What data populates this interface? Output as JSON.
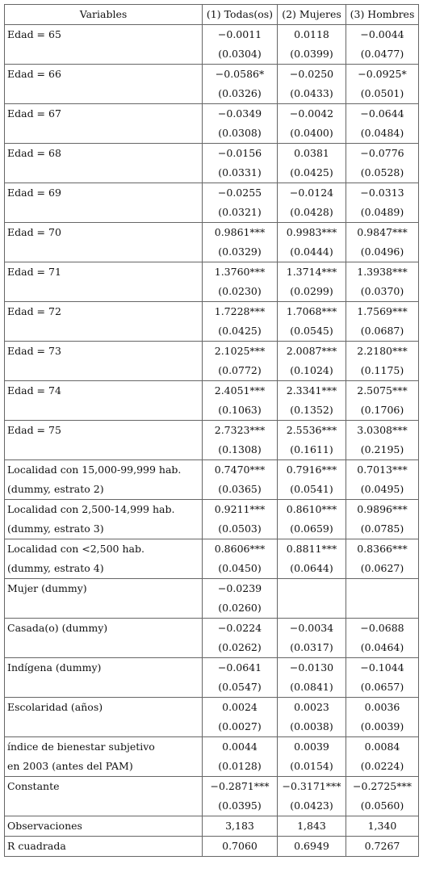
{
  "table": {
    "header": [
      "Variables",
      "(1) Todas(os)",
      "(2) Mujeres",
      "(3) Hombres"
    ],
    "groups": [
      {
        "rows": [
          {
            "label": "Edad = 65",
            "values": [
              "−0.0011",
              "0.0118",
              "−0.0044"
            ]
          },
          {
            "values": [
              "(0.0304)",
              "(0.0399)",
              "(0.0477)"
            ]
          }
        ]
      },
      {
        "rows": [
          {
            "label": "Edad = 66",
            "values": [
              "−0.0586*",
              "−0.0250",
              "−0.0925*"
            ]
          },
          {
            "values": [
              "(0.0326)",
              "(0.0433)",
              "(0.0501)"
            ]
          }
        ]
      },
      {
        "rows": [
          {
            "label": "Edad = 67",
            "values": [
              "−0.0349",
              "−0.0042",
              "−0.0644"
            ]
          },
          {
            "values": [
              "(0.0308)",
              "(0.0400)",
              "(0.0484)"
            ]
          }
        ]
      },
      {
        "rows": [
          {
            "label": "Edad = 68",
            "values": [
              "−0.0156",
              "0.0381",
              "−0.0776"
            ]
          },
          {
            "values": [
              "(0.0331)",
              "(0.0425)",
              "(0.0528)"
            ]
          }
        ]
      },
      {
        "rows": [
          {
            "label": "Edad = 69",
            "values": [
              "−0.0255",
              "−0.0124",
              "−0.0313"
            ]
          },
          {
            "values": [
              "(0.0321)",
              "(0.0428)",
              "(0.0489)"
            ]
          }
        ]
      },
      {
        "rows": [
          {
            "label": "Edad = 70",
            "values": [
              "0.9861***",
              "0.9983***",
              "0.9847***"
            ]
          },
          {
            "values": [
              "(0.0329)",
              "(0.0444)",
              "(0.0496)"
            ]
          }
        ]
      },
      {
        "rows": [
          {
            "label": "Edad = 71",
            "values": [
              "1.3760***",
              "1.3714***",
              "1.3938***"
            ]
          },
          {
            "values": [
              "(0.0230)",
              "(0.0299)",
              "(0.0370)"
            ]
          }
        ]
      },
      {
        "rows": [
          {
            "label": "Edad = 72",
            "values": [
              "1.7228***",
              "1.7068***",
              "1.7569***"
            ]
          },
          {
            "values": [
              "(0.0425)",
              "(0.0545)",
              "(0.0687)"
            ]
          }
        ]
      },
      {
        "rows": [
          {
            "label": "Edad = 73",
            "values": [
              "2.1025***",
              "2.0087***",
              "2.2180***"
            ]
          },
          {
            "values": [
              "(0.0772)",
              "(0.1024)",
              "(0.1175)"
            ]
          }
        ]
      },
      {
        "rows": [
          {
            "label": "Edad = 74",
            "values": [
              "2.4051***",
              "2.3341***",
              "2.5075***"
            ]
          },
          {
            "values": [
              "(0.1063)",
              "(0.1352)",
              "(0.1706)"
            ]
          }
        ]
      },
      {
        "rows": [
          {
            "label": "Edad = 75",
            "values": [
              "2.7323***",
              "2.5536***",
              "3.0308***"
            ]
          },
          {
            "values": [
              "(0.1308)",
              "(0.1611)",
              "(0.2195)"
            ]
          }
        ]
      },
      {
        "rows": [
          {
            "label": "Localidad con 15,000-99,999 hab.",
            "values": [
              "0.7470***",
              "0.7916***",
              "0.7013***"
            ]
          },
          {
            "label": "(dummy, estrato 2)",
            "values": [
              "(0.0365)",
              "(0.0541)",
              "(0.0495)"
            ]
          }
        ]
      },
      {
        "rows": [
          {
            "label": "Localidad con 2,500-14,999 hab.",
            "values": [
              "0.9211***",
              "0.8610***",
              "0.9896***"
            ]
          },
          {
            "label": "(dummy, estrato 3)",
            "values": [
              "(0.0503)",
              "(0.0659)",
              "(0.0785)"
            ]
          }
        ]
      },
      {
        "rows": [
          {
            "label": "Localidad con <2,500 hab.",
            "values": [
              "0.8606***",
              "0.8811***",
              "0.8366***"
            ]
          },
          {
            "label": "(dummy, estrato 4)",
            "values": [
              "(0.0450)",
              "(0.0644)",
              "(0.0627)"
            ]
          }
        ]
      },
      {
        "rows": [
          {
            "label": "Mujer (dummy)",
            "values": [
              "−0.0239",
              null,
              null
            ]
          },
          {
            "values": [
              "(0.0260)",
              null,
              null
            ]
          }
        ]
      },
      {
        "rows": [
          {
            "label": "Casada(o) (dummy)",
            "values": [
              "−0.0224",
              "−0.0034",
              "−0.0688"
            ]
          },
          {
            "values": [
              "(0.0262)",
              "(0.0317)",
              "(0.0464)"
            ]
          }
        ]
      },
      {
        "rows": [
          {
            "label": "Indígena (dummy)",
            "values": [
              "−0.0641",
              "−0.0130",
              "−0.1044"
            ]
          },
          {
            "values": [
              "(0.0547)",
              "(0.0841)",
              "(0.0657)"
            ]
          }
        ]
      },
      {
        "rows": [
          {
            "label": "Escolaridad (años)",
            "values": [
              "0.0024",
              "0.0023",
              "0.0036"
            ]
          },
          {
            "values": [
              "(0.0027)",
              "(0.0038)",
              "(0.0039)"
            ]
          }
        ]
      },
      {
        "rows": [
          {
            "label": "índice de bienestar subjetivo",
            "values": [
              "0.0044",
              "0.0039",
              "0.0084"
            ]
          },
          {
            "label": "en 2003 (antes del PAM)",
            "values": [
              "(0.0128)",
              "(0.0154)",
              "(0.0224)"
            ]
          }
        ]
      },
      {
        "rows": [
          {
            "label": "Constante",
            "values": [
              "−0.2871***",
              "−0.3171***",
              "−0.2725***"
            ]
          },
          {
            "values": [
              "(0.0395)",
              "(0.0423)",
              "(0.0560)"
            ]
          }
        ]
      },
      {
        "rows": [
          {
            "label": "Observaciones",
            "values": [
              "3,183",
              "1,843",
              "1,340"
            ]
          }
        ]
      },
      {
        "rows": [
          {
            "label": "R cuadrada",
            "values": [
              "0.7060",
              "0.6949",
              "0.7267"
            ]
          }
        ]
      }
    ]
  }
}
